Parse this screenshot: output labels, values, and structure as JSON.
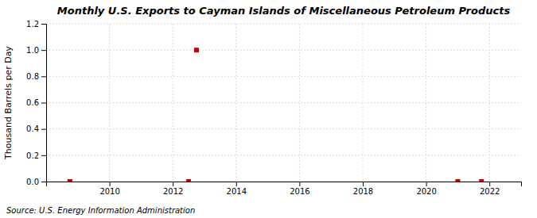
{
  "chart_data": {
    "type": "scatter",
    "title": "Monthly U.S. Exports to Cayman Islands of Miscellaneous Petroleum Products",
    "ylabel": "Thousand Barrels per Day",
    "source": "Source: U.S. Energy Information Administration",
    "x": [
      2008.75,
      2012.5,
      2012.75,
      2021.0,
      2021.75
    ],
    "values": [
      0.0,
      0.0,
      1.0,
      0.0,
      0.0
    ],
    "color": "#cc0000",
    "marker": "square",
    "xlim": [
      2008.0,
      2023.0
    ],
    "ylim": [
      0.0,
      1.2
    ],
    "xticks": [
      2010,
      2012,
      2014,
      2016,
      2018,
      2020,
      2022
    ],
    "yticks": [
      {
        "value": 0.0,
        "label": "0.0"
      },
      0.2,
      0.4,
      0.6,
      0.8,
      {
        "value": 1.0,
        "label": "1.0"
      },
      1.2
    ],
    "grid": true
  }
}
